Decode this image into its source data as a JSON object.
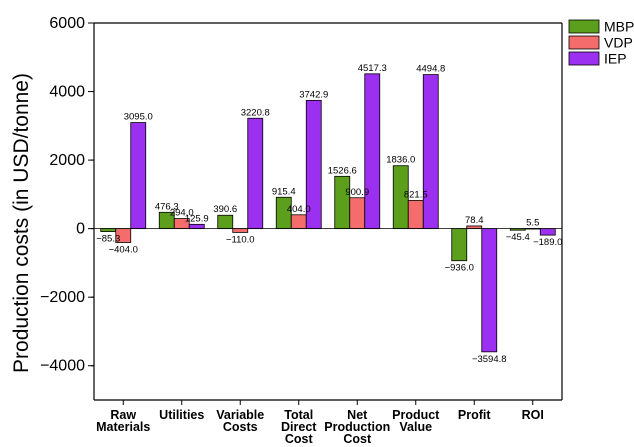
{
  "chart_data": {
    "type": "bar",
    "title": "",
    "xlabel": "",
    "ylabel": "Production costs (in USD/tonne)",
    "ylim": [
      -5000,
      6000
    ],
    "yticks": [
      -4000,
      -2000,
      0,
      2000,
      4000,
      6000
    ],
    "grid": false,
    "legend_position": "top-right",
    "categories": [
      [
        "Raw",
        "Materials"
      ],
      [
        "Utilities"
      ],
      [
        "Variable",
        "Costs"
      ],
      [
        "Total",
        "Direct",
        "Cost"
      ],
      [
        "Net",
        "Production",
        "Cost"
      ],
      [
        "Product",
        "Value"
      ],
      [
        "Profit"
      ],
      [
        "ROI"
      ]
    ],
    "series": [
      {
        "name": "MBP",
        "color": "#5c9f1c",
        "values": [
          -85.3,
          476.3,
          390.6,
          915.4,
          1526.6,
          1836.0,
          -936.0,
          -45.4
        ],
        "labels": [
          "−85.3",
          "476.3",
          "390.6",
          "915.4",
          "1526.6",
          "1836.0",
          "−936.0",
          "−45.4"
        ]
      },
      {
        "name": "VDP",
        "color": "#f56c6c",
        "values": [
          -404.0,
          294.0,
          -110.0,
          404.0,
          900.9,
          821.5,
          78.4,
          5.5
        ],
        "labels": [
          "−404.0",
          "294.0",
          "−110.0",
          "404.0",
          "900.9",
          "821.5",
          "78.4",
          "5.5"
        ]
      },
      {
        "name": "IEP",
        "color": "#9b30f0",
        "values": [
          3095.0,
          125.9,
          3220.8,
          3742.9,
          4517.3,
          4494.8,
          -3594.8,
          -189.0
        ],
        "labels": [
          "3095.0",
          "125.9",
          "3220.8",
          "3742.9",
          "4517.3",
          "4494.8",
          "−3594.8",
          "−189.0"
        ]
      }
    ]
  }
}
